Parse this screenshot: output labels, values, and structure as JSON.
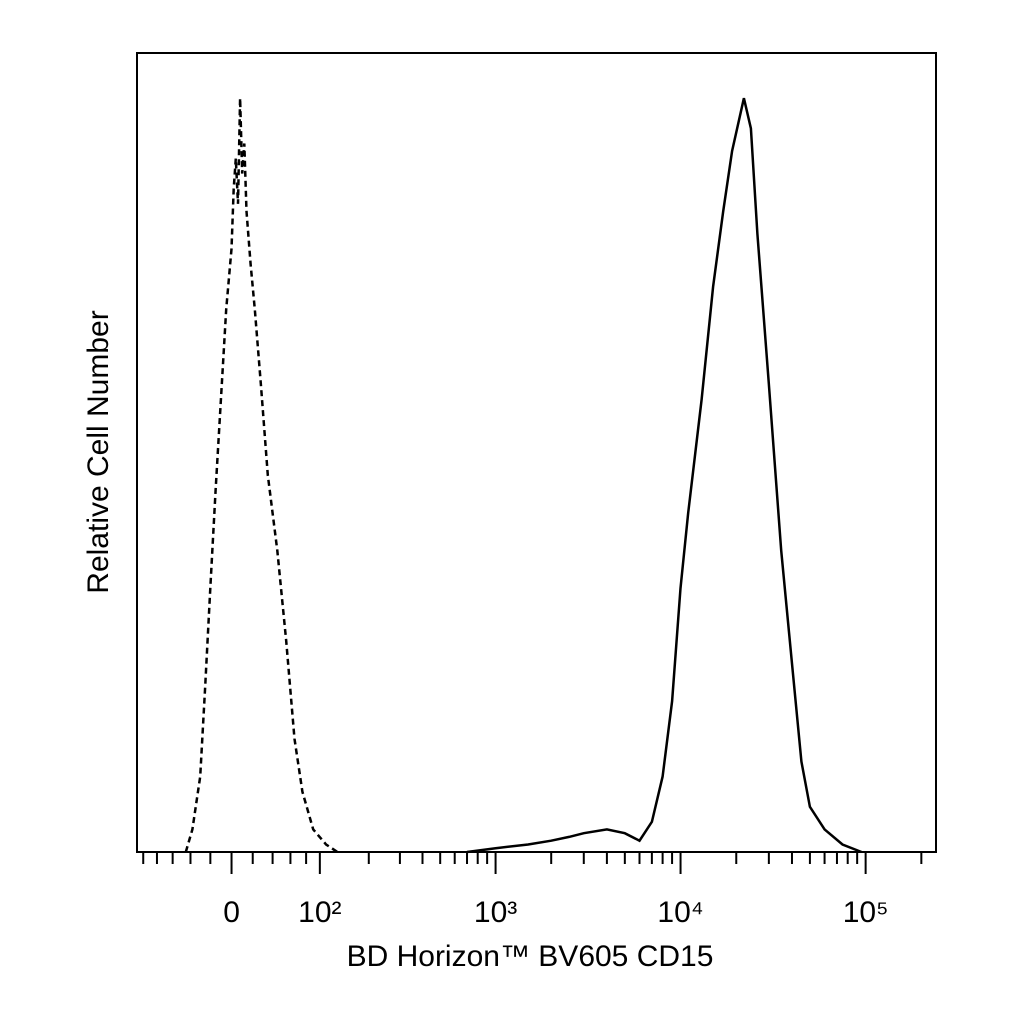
{
  "chart_data": {
    "type": "line",
    "xlabel": "BD Horizon™ BV605 CD15",
    "ylabel": "Relative Cell Number",
    "xscale": "biexponential",
    "xlim": [
      -110,
      240000
    ],
    "ylim": [
      0,
      106
    ],
    "xticks": [
      0,
      {
        "value": 100,
        "label": "10²"
      },
      {
        "value": 1000,
        "label": "10³"
      },
      {
        "value": 10000,
        "label": "10⁴"
      },
      {
        "value": 100000,
        "label": "10⁵"
      }
    ],
    "xminorticks": [
      -100,
      -80,
      -60,
      -40,
      -20,
      20,
      40,
      60,
      80,
      200,
      300,
      400,
      500,
      600,
      700,
      800,
      900,
      2000,
      3000,
      4000,
      5000,
      6000,
      7000,
      8000,
      9000,
      20000,
      30000,
      40000,
      50000,
      60000,
      70000,
      80000,
      90000,
      200000
    ],
    "series": [
      {
        "color": "#000000",
        "style": "dashed",
        "x": [
          -45,
          -38,
          -30,
          -25,
          -20,
          -15,
          -10,
          -5,
          0,
          2,
          4,
          6,
          8,
          10,
          12,
          14,
          18,
          22,
          28,
          35,
          45,
          55,
          65,
          75,
          90,
          110,
          130
        ],
        "values": [
          0,
          3,
          10,
          22,
          35,
          48,
          60,
          72,
          80,
          88,
          92,
          86,
          100,
          90,
          94,
          85,
          78,
          72,
          62,
          50,
          40,
          28,
          15,
          8,
          3,
          1,
          0
        ]
      },
      {
        "color": "#000000",
        "style": "solid",
        "x": [
          700,
          1000,
          1500,
          2000,
          2500,
          3000,
          4000,
          5000,
          6000,
          7000,
          8000,
          9000,
          10000,
          11000,
          13000,
          15000,
          17000,
          19000,
          22000,
          24000,
          26000,
          30000,
          35000,
          40000,
          45000,
          50000,
          60000,
          75000,
          95000
        ],
        "values": [
          0,
          0.5,
          1,
          1.5,
          2,
          2.5,
          3,
          2.5,
          1.5,
          4,
          10,
          20,
          35,
          45,
          60,
          75,
          85,
          93,
          100,
          96,
          82,
          62,
          40,
          25,
          12,
          6,
          3,
          1,
          0
        ]
      }
    ]
  }
}
